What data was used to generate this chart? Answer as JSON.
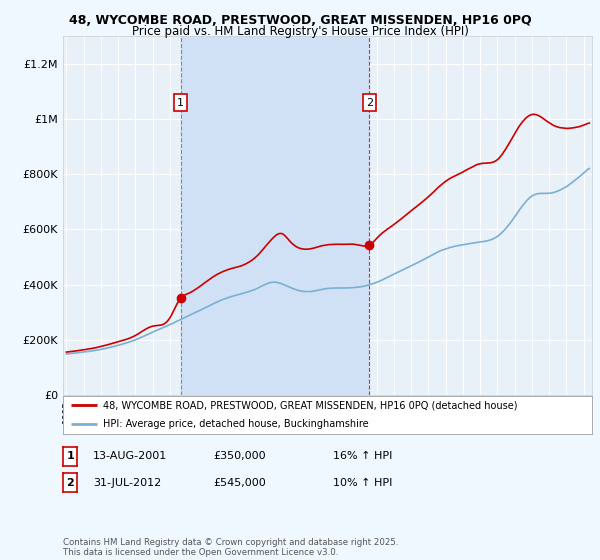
{
  "title_line1": "48, WYCOMBE ROAD, PRESTWOOD, GREAT MISSENDEN, HP16 0PQ",
  "title_line2": "Price paid vs. HM Land Registry's House Price Index (HPI)",
  "ylabel_ticks": [
    "£0",
    "£200K",
    "£400K",
    "£600K",
    "£800K",
    "£1M",
    "£1.2M"
  ],
  "ytick_values": [
    0,
    200000,
    400000,
    600000,
    800000,
    1000000,
    1200000
  ],
  "ylim": [
    0,
    1300000
  ],
  "xlim_start": 1994.8,
  "xlim_end": 2025.5,
  "background_color": "#f0f8ff",
  "plot_bg_color": "#e8f0f8",
  "shaded_region_color": "#ccdff5",
  "grid_color": "#ffffff",
  "red_line_color": "#cc0000",
  "blue_line_color": "#7ab0d4",
  "sale1_year": 2001.619,
  "sale1_price": 350000,
  "sale2_year": 2012.58,
  "sale2_price": 545000,
  "legend_label_red": "48, WYCOMBE ROAD, PRESTWOOD, GREAT MISSENDEN, HP16 0PQ (detached house)",
  "legend_label_blue": "HPI: Average price, detached house, Buckinghamshire",
  "table_row1": [
    "1",
    "13-AUG-2001",
    "£350,000",
    "16% ↑ HPI"
  ],
  "table_row2": [
    "2",
    "31-JUL-2012",
    "£545,000",
    "10% ↑ HPI"
  ],
  "footnote": "Contains HM Land Registry data © Crown copyright and database right 2025.\nThis data is licensed under the Open Government Licence v3.0."
}
